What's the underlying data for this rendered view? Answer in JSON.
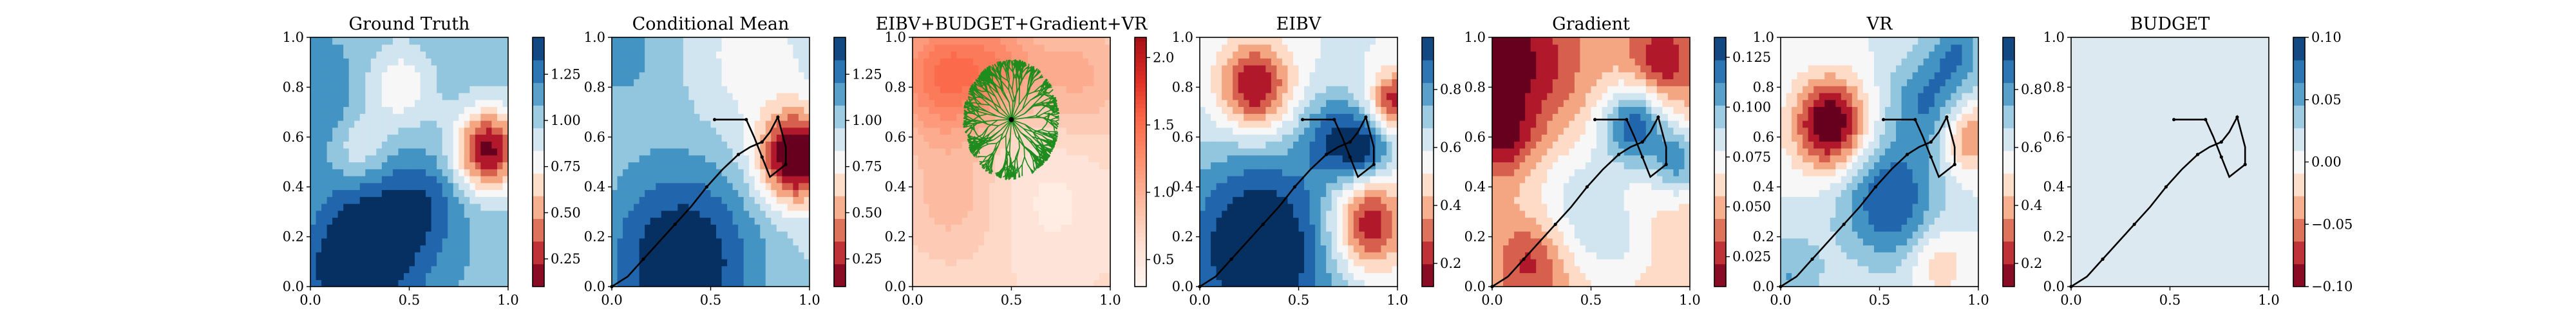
{
  "figure": {
    "background": "#ffffff"
  },
  "chart_data": [
    {
      "type": "heatmap",
      "title": "Ground Truth",
      "xlim": [
        0,
        1
      ],
      "ylim": [
        0,
        1
      ],
      "xticks": [
        "0.0",
        "0.5",
        "1.0"
      ],
      "yticks": [
        "0.0",
        "0.2",
        "0.4",
        "0.6",
        "0.8",
        "1.0"
      ],
      "colorbar": {
        "range": [
          0.1,
          1.45
        ],
        "ticks": [
          "0.25",
          "0.50",
          "0.75",
          "1.00",
          "1.25"
        ],
        "tick_values": [
          0.25,
          0.5,
          0.75,
          1.0,
          1.25
        ],
        "colormap": "RdBu"
      },
      "path": []
    },
    {
      "type": "heatmap",
      "title": "Conditional Mean",
      "xlim": [
        0,
        1
      ],
      "ylim": [
        0,
        1
      ],
      "xticks": [
        "0.0",
        "0.5",
        "1.0"
      ],
      "yticks": [
        "0.0",
        "0.2",
        "0.4",
        "0.6",
        "0.8",
        "1.0"
      ],
      "colorbar": {
        "range": [
          0.1,
          1.45
        ],
        "ticks": [
          "0.25",
          "0.50",
          "0.75",
          "1.00",
          "1.25"
        ],
        "tick_values": [
          0.25,
          0.5,
          0.75,
          1.0,
          1.25
        ],
        "colormap": "RdBu"
      },
      "path": [
        [
          0.0,
          0.0
        ],
        [
          0.08,
          0.04
        ],
        [
          0.16,
          0.11
        ],
        [
          0.24,
          0.18
        ],
        [
          0.32,
          0.25
        ],
        [
          0.4,
          0.32
        ],
        [
          0.48,
          0.4
        ],
        [
          0.56,
          0.47
        ],
        [
          0.64,
          0.53
        ],
        [
          0.7,
          0.56
        ],
        [
          0.76,
          0.58
        ],
        [
          0.8,
          0.62
        ],
        [
          0.84,
          0.68
        ],
        [
          0.88,
          0.56
        ],
        [
          0.88,
          0.49
        ],
        [
          0.8,
          0.44
        ],
        [
          0.76,
          0.52
        ],
        [
          0.72,
          0.6
        ],
        [
          0.68,
          0.67
        ],
        [
          0.58,
          0.67
        ],
        [
          0.52,
          0.67
        ]
      ]
    },
    {
      "type": "heatmap",
      "title": "EIBV+BUDGET+Gradient+VR",
      "xlim": [
        0,
        1
      ],
      "ylim": [
        0,
        1
      ],
      "xticks": [
        "0.0",
        "0.5",
        "1.0"
      ],
      "yticks": [
        "0.0",
        "0.2",
        "0.4",
        "0.6",
        "0.8",
        "1.0"
      ],
      "colorbar": {
        "range": [
          0.3,
          2.15
        ],
        "ticks": [
          "0.5",
          "1.0",
          "1.5",
          "2.0"
        ],
        "tick_values": [
          0.5,
          1.0,
          1.5,
          2.0
        ],
        "colormap": "Reds"
      },
      "tree_root": [
        0.5,
        0.67
      ],
      "path": []
    },
    {
      "type": "heatmap",
      "title": "EIBV",
      "xlim": [
        0,
        1
      ],
      "ylim": [
        0,
        1
      ],
      "xticks": [
        "0.0",
        "0.5",
        "1.0"
      ],
      "yticks": [
        "0.0",
        "0.2",
        "0.4",
        "0.6",
        "0.8",
        "1.0"
      ],
      "colorbar": {
        "range": [
          0.12,
          0.98
        ],
        "ticks": [
          "0.2",
          "0.4",
          "0.6",
          "0.8"
        ],
        "tick_values": [
          0.2,
          0.4,
          0.6,
          0.8
        ],
        "colormap": "RdBu"
      },
      "path": [
        [
          0.0,
          0.0
        ],
        [
          0.08,
          0.04
        ],
        [
          0.16,
          0.11
        ],
        [
          0.24,
          0.18
        ],
        [
          0.32,
          0.25
        ],
        [
          0.4,
          0.32
        ],
        [
          0.48,
          0.4
        ],
        [
          0.56,
          0.47
        ],
        [
          0.64,
          0.53
        ],
        [
          0.7,
          0.56
        ],
        [
          0.76,
          0.58
        ],
        [
          0.8,
          0.62
        ],
        [
          0.84,
          0.68
        ],
        [
          0.88,
          0.56
        ],
        [
          0.88,
          0.49
        ],
        [
          0.8,
          0.44
        ],
        [
          0.76,
          0.52
        ],
        [
          0.72,
          0.6
        ],
        [
          0.68,
          0.67
        ],
        [
          0.58,
          0.67
        ],
        [
          0.52,
          0.67
        ]
      ]
    },
    {
      "type": "heatmap",
      "title": "Gradient",
      "xlim": [
        0,
        1
      ],
      "ylim": [
        0,
        1
      ],
      "xticks": [
        "0.0",
        "0.5",
        "1.0"
      ],
      "yticks": [
        "0.0",
        "0.2",
        "0.4",
        "0.6",
        "0.8",
        "1.0"
      ],
      "colorbar": {
        "range": [
          0.01,
          0.135
        ],
        "ticks": [
          "0.025",
          "0.050",
          "0.075",
          "0.100",
          "0.125"
        ],
        "tick_values": [
          0.025,
          0.05,
          0.075,
          0.1,
          0.125
        ],
        "colormap": "RdBu"
      },
      "path": [
        [
          0.0,
          0.0
        ],
        [
          0.08,
          0.04
        ],
        [
          0.16,
          0.11
        ],
        [
          0.24,
          0.18
        ],
        [
          0.32,
          0.25
        ],
        [
          0.4,
          0.32
        ],
        [
          0.48,
          0.4
        ],
        [
          0.56,
          0.47
        ],
        [
          0.64,
          0.53
        ],
        [
          0.7,
          0.56
        ],
        [
          0.76,
          0.58
        ],
        [
          0.8,
          0.62
        ],
        [
          0.84,
          0.68
        ],
        [
          0.88,
          0.56
        ],
        [
          0.88,
          0.49
        ],
        [
          0.8,
          0.44
        ],
        [
          0.76,
          0.52
        ],
        [
          0.72,
          0.6
        ],
        [
          0.68,
          0.67
        ],
        [
          0.58,
          0.67
        ],
        [
          0.52,
          0.67
        ]
      ]
    },
    {
      "type": "heatmap",
      "title": "VR",
      "xlim": [
        0,
        1
      ],
      "ylim": [
        0,
        1
      ],
      "xticks": [
        "0.0",
        "0.5",
        "1.0"
      ],
      "yticks": [
        "0.0",
        "0.2",
        "0.4",
        "0.6",
        "0.8",
        "1.0"
      ],
      "colorbar": {
        "range": [
          0.12,
          0.98
        ],
        "ticks": [
          "0.2",
          "0.4",
          "0.6",
          "0.8"
        ],
        "tick_values": [
          0.2,
          0.4,
          0.6,
          0.8
        ],
        "colormap": "RdBu"
      },
      "path": [
        [
          0.0,
          0.0
        ],
        [
          0.08,
          0.04
        ],
        [
          0.16,
          0.11
        ],
        [
          0.24,
          0.18
        ],
        [
          0.32,
          0.25
        ],
        [
          0.4,
          0.32
        ],
        [
          0.48,
          0.4
        ],
        [
          0.56,
          0.47
        ],
        [
          0.64,
          0.53
        ],
        [
          0.7,
          0.56
        ],
        [
          0.76,
          0.58
        ],
        [
          0.8,
          0.62
        ],
        [
          0.84,
          0.68
        ],
        [
          0.88,
          0.56
        ],
        [
          0.88,
          0.49
        ],
        [
          0.8,
          0.44
        ],
        [
          0.76,
          0.52
        ],
        [
          0.72,
          0.6
        ],
        [
          0.68,
          0.67
        ],
        [
          0.58,
          0.67
        ],
        [
          0.52,
          0.67
        ]
      ]
    },
    {
      "type": "heatmap",
      "title": "BUDGET",
      "xlim": [
        0,
        1
      ],
      "ylim": [
        0,
        1
      ],
      "xticks": [
        "0.0",
        "0.5",
        "1.0"
      ],
      "yticks": [
        "0.0",
        "0.2",
        "0.4",
        "0.6",
        "0.8",
        "1.0"
      ],
      "colorbar": {
        "range": [
          -0.1,
          0.1
        ],
        "ticks": [
          "−0.10",
          "−0.05",
          "0.00",
          "0.05",
          "0.10"
        ],
        "tick_values": [
          -0.1,
          -0.05,
          0.0,
          0.05,
          0.1
        ],
        "colormap": "RdBu"
      },
      "path": [
        [
          0.0,
          0.0
        ],
        [
          0.08,
          0.04
        ],
        [
          0.16,
          0.11
        ],
        [
          0.24,
          0.18
        ],
        [
          0.32,
          0.25
        ],
        [
          0.4,
          0.32
        ],
        [
          0.48,
          0.4
        ],
        [
          0.56,
          0.47
        ],
        [
          0.64,
          0.53
        ],
        [
          0.7,
          0.56
        ],
        [
          0.76,
          0.58
        ],
        [
          0.8,
          0.62
        ],
        [
          0.84,
          0.68
        ],
        [
          0.88,
          0.56
        ],
        [
          0.88,
          0.49
        ],
        [
          0.8,
          0.44
        ],
        [
          0.76,
          0.52
        ],
        [
          0.72,
          0.6
        ],
        [
          0.68,
          0.67
        ],
        [
          0.58,
          0.67
        ],
        [
          0.52,
          0.67
        ]
      ]
    }
  ],
  "colors": {
    "rdbu": [
      "#67001f",
      "#b2182b",
      "#d6604d",
      "#f4a582",
      "#fddbc7",
      "#f7f7f7",
      "#d1e5f0",
      "#92c5de",
      "#4393c3",
      "#2166ac",
      "#053061"
    ],
    "reds": [
      "#fff5f0",
      "#fee0d2",
      "#fcbba1",
      "#fc9272",
      "#fb6a4a",
      "#de2d26",
      "#a50f15"
    ],
    "path": "#000000",
    "tree": "#1e8c1e"
  }
}
